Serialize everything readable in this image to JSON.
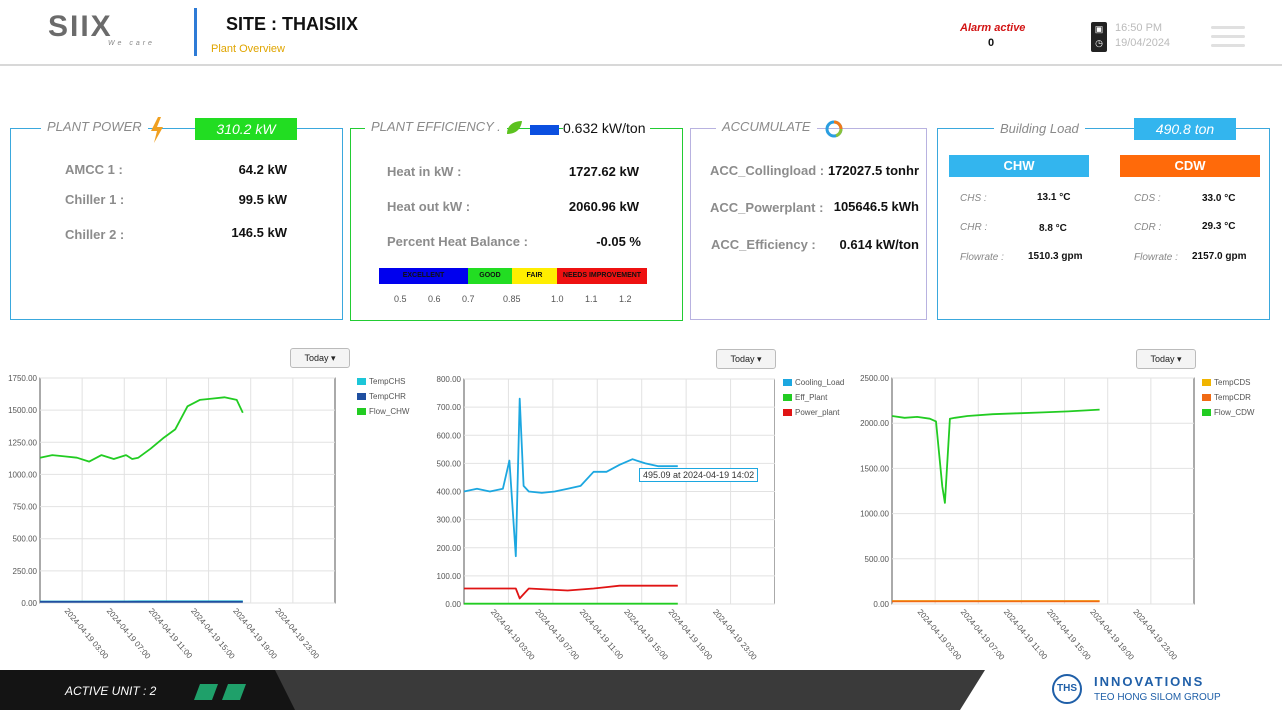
{
  "header": {
    "logo_text": "SIIX",
    "logo_tagline": "We care",
    "site_title": "SITE : THAISIIX",
    "site_subtitle": "Plant Overview",
    "alarm_label": "Alarm active",
    "alarm_value": "0",
    "time": "16:50 PM",
    "date": "19/04/2024",
    "menu_icon": "hamburger-icon"
  },
  "plant_power": {
    "title": "PLANT POWER",
    "icon": "lightning-icon",
    "total": "310.2 kW",
    "rows": [
      {
        "label": "AMCC 1 :",
        "value": "64.2 kW"
      },
      {
        "label": "Chiller 1 :",
        "value": "99.5 kW"
      },
      {
        "label": "Chiller 2 :",
        "value": "146.5 kW"
      }
    ]
  },
  "plant_efficiency": {
    "title": "PLANT EFFICIENCY .",
    "icon": "leaf-icon",
    "value": "0.632 kW/ton",
    "rows": [
      {
        "label": "Heat in kW :",
        "value": "1727.62 kW"
      },
      {
        "label": "Heat out kW :",
        "value": "2060.96 kW"
      },
      {
        "label": "Percent Heat Balance :",
        "value": "-0.05 %"
      }
    ],
    "scale": [
      {
        "label": "EXCELLENT",
        "color": "#0000ee"
      },
      {
        "label": "GOOD",
        "color": "#22dd22"
      },
      {
        "label": "FAIR",
        "color": "#ffee00"
      },
      {
        "label": "NEEDS IMPROVEMENT",
        "color": "#ee1111"
      }
    ],
    "ticks": [
      "0.5",
      "0.6",
      "0.7",
      "0.85",
      "1.0",
      "1.1",
      "1.2"
    ]
  },
  "accumulate": {
    "title": "ACCUMULATE",
    "icon": "pie-chart-icon",
    "rows": [
      {
        "label": "ACC_Collingload :",
        "value": "172027.5 tonhr"
      },
      {
        "label": "ACC_Powerplant :",
        "value": "105646.5 kWh"
      },
      {
        "label": "ACC_Efficiency :",
        "value": "0.614 kW/ton"
      }
    ]
  },
  "building_load": {
    "title": "Building Load",
    "total": "490.8 ton",
    "chw": {
      "header": "CHW",
      "rows": [
        {
          "label": "CHS :",
          "value": "13.1 °C"
        },
        {
          "label": "CHR :",
          "value": "8.8 °C"
        },
        {
          "label": "Flowrate :",
          "value": "1510.3 gpm"
        }
      ]
    },
    "cdw": {
      "header": "CDW",
      "rows": [
        {
          "label": "CDS :",
          "value": "33.0 °C"
        },
        {
          "label": "CDR :",
          "value": "29.3 °C"
        },
        {
          "label": "Flowrate :",
          "value": "2157.0 gpm"
        }
      ]
    }
  },
  "colors": {
    "power_green": "#22dd22",
    "efficiency_blue": "#0b4fe0",
    "accumulate_border": "#b8b2e0",
    "building_blue": "#33b5ee",
    "cdw_orange": "#ff6a0a",
    "card_blue": "#3aa8dd",
    "card_green": "#22cc33"
  },
  "today_label": "Today ▾",
  "footer": {
    "active_unit": "ACTIVE UNIT : 2",
    "company_badge": "THS",
    "company_name": "INNOVATIONS",
    "company_group": "TEO HONG SILOM GROUP"
  },
  "tooltip": "495.09 at 2024-04-19 14:02",
  "chart_data": [
    {
      "type": "line",
      "x_ticks": [
        "2024-04-19 03:00",
        "2024-04-19 07:00",
        "2024-04-19 11:00",
        "2024-04-19 15:00",
        "2024-04-19 19:00",
        "2024-04-19 23:00"
      ],
      "ylim": [
        0,
        1750
      ],
      "y_ticks": [
        "0.00",
        "250.00",
        "500.00",
        "750.00",
        "1000.00",
        "1250.00",
        "1500.00",
        "1750.00"
      ],
      "series": [
        {
          "name": "TempCHS",
          "color": "#1cc6d8",
          "x": [
            0,
            4,
            8,
            12,
            16.5
          ],
          "values": [
            12,
            12,
            13,
            13,
            13
          ]
        },
        {
          "name": "TempCHR",
          "color": "#1f4fa0",
          "x": [
            0,
            4,
            8,
            12,
            16.5
          ],
          "values": [
            9,
            9,
            9,
            9,
            9
          ]
        },
        {
          "name": "Flow_CHW",
          "color": "#22cc22",
          "x": [
            0,
            1,
            2,
            3,
            4,
            5,
            6,
            7,
            7.5,
            8,
            9,
            10,
            11,
            12,
            13,
            14,
            15,
            16,
            16.5
          ],
          "values": [
            1130,
            1150,
            1140,
            1130,
            1100,
            1150,
            1120,
            1150,
            1120,
            1130,
            1200,
            1280,
            1350,
            1530,
            1580,
            1590,
            1600,
            1580,
            1480
          ]
        }
      ]
    },
    {
      "type": "line",
      "x_ticks": [
        "2024-04-19 03:00",
        "2024-04-19 07:00",
        "2024-04-19 11:00",
        "2024-04-19 15:00",
        "2024-04-19 19:00",
        "2024-04-19 23:00"
      ],
      "ylim": [
        0,
        800
      ],
      "y_ticks": [
        "0.00",
        "100.00",
        "200.00",
        "300.00",
        "400.00",
        "500.00",
        "600.00",
        "700.00",
        "800.00"
      ],
      "series": [
        {
          "name": "Cooling_Load",
          "color": "#1ca7e0",
          "x": [
            0,
            1,
            2,
            3,
            3.5,
            4,
            4.3,
            4.6,
            5,
            6,
            7,
            8,
            9,
            10,
            11,
            12,
            13,
            14,
            15,
            16.5
          ],
          "values": [
            400,
            410,
            400,
            410,
            510,
            170,
            730,
            420,
            400,
            395,
            400,
            410,
            420,
            470,
            470,
            495,
            515,
            500,
            490,
            490
          ]
        },
        {
          "name": "Eff_Plant",
          "color": "#22cc22",
          "x": [
            0,
            16.5
          ],
          "values": [
            1,
            1
          ]
        },
        {
          "name": "Power_plant",
          "color": "#e01414",
          "x": [
            0,
            3,
            4,
            4.3,
            5,
            8,
            10,
            11,
            12,
            14,
            16.5
          ],
          "values": [
            55,
            55,
            55,
            20,
            55,
            48,
            55,
            60,
            65,
            65,
            65
          ]
        }
      ]
    },
    {
      "type": "line",
      "x_ticks": [
        "2024-04-19 03:00",
        "2024-04-19 07:00",
        "2024-04-19 11:00",
        "2024-04-19 15:00",
        "2024-04-19 19:00",
        "2024-04-19 23:00"
      ],
      "ylim": [
        0,
        2500
      ],
      "y_ticks": [
        "0.00",
        "500.00",
        "1000.00",
        "1500.00",
        "2000.00",
        "2500.00"
      ],
      "series": [
        {
          "name": "TempCDS",
          "color": "#f0b400",
          "x": [
            0,
            16.5
          ],
          "values": [
            33,
            33
          ]
        },
        {
          "name": "TempCDR",
          "color": "#f06a14",
          "x": [
            0,
            16.5
          ],
          "values": [
            29,
            29
          ]
        },
        {
          "name": "Flow_CDW",
          "color": "#22cc22",
          "x": [
            0,
            1,
            2,
            3,
            3.5,
            4,
            4.2,
            4.6,
            5,
            6,
            8,
            10,
            12,
            14,
            16.5
          ],
          "values": [
            2080,
            2060,
            2070,
            2050,
            2020,
            1300,
            1120,
            2050,
            2060,
            2080,
            2100,
            2110,
            2120,
            2130,
            2150
          ]
        }
      ]
    }
  ]
}
